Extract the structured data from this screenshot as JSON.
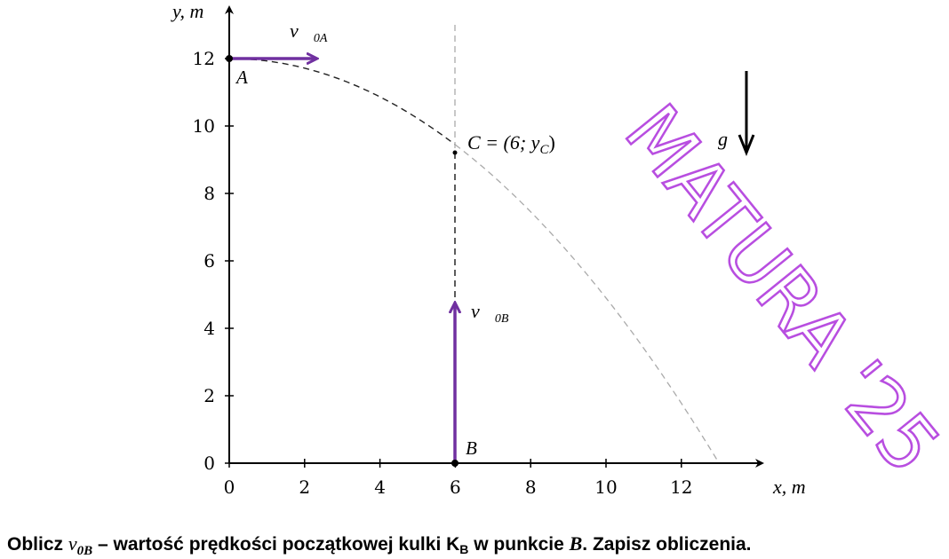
{
  "axes": {
    "x_label": "x, m",
    "y_label": "y, m",
    "x_ticks": [
      0,
      2,
      4,
      6,
      8,
      10,
      12
    ],
    "y_ticks": [
      0,
      2,
      4,
      6,
      8,
      10,
      12
    ]
  },
  "points": {
    "A": "A",
    "B": "B",
    "C": {
      "text": "C = (6; ",
      "var": "y",
      "subscript": "C",
      "close": ")"
    }
  },
  "vectors": {
    "v0A": {
      "symbol": "v⃗",
      "subscript": "0A"
    },
    "v0B": {
      "symbol": "v⃗",
      "subscript": "0B"
    },
    "g": {
      "symbol": "g⃗"
    }
  },
  "watermark": "MATURA '25",
  "task": {
    "lead": "Oblicz ",
    "symbol": "v",
    "symbol_subscript": "0B",
    "middle": " – wartość prędkości początkowej kulki K",
    "ball_subscript": "B",
    "point_text": " w punkcie ",
    "point": "B",
    "end": ". Zapisz obliczenia."
  }
}
